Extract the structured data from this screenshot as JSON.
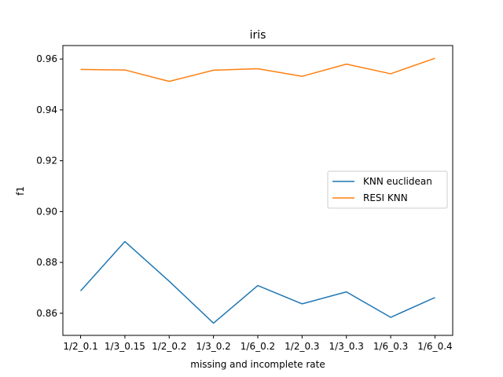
{
  "chart_data": {
    "type": "line",
    "title": "iris",
    "xlabel": "missing and incomplete rate",
    "ylabel": "f1",
    "categories": [
      "1/2_0.1",
      "1/3_0.15",
      "1/2_0.2",
      "1/3_0.2",
      "1/6_0.2",
      "1/2_0.3",
      "1/3_0.3",
      "1/6_0.3",
      "1/6_0.4"
    ],
    "ylim": [
      0.8513,
      0.9653
    ],
    "yticks": [
      0.86,
      0.88,
      0.9,
      0.92,
      0.94,
      0.96
    ],
    "ytick_labels": [
      "0.86",
      "0.88",
      "0.90",
      "0.92",
      "0.94",
      "0.96"
    ],
    "grid": false,
    "legend_position": "center-right",
    "series": [
      {
        "name": "KNN euclidean",
        "color": "#1f77b4",
        "values": [
          0.8688,
          0.8882,
          0.8726,
          0.8561,
          0.8709,
          0.8637,
          0.8684,
          0.8584,
          0.8662
        ]
      },
      {
        "name": "RESI KNN",
        "color": "#ff7f0e",
        "values": [
          0.9559,
          0.9557,
          0.9512,
          0.9556,
          0.9562,
          0.9532,
          0.958,
          0.9542,
          0.9603
        ]
      }
    ]
  }
}
